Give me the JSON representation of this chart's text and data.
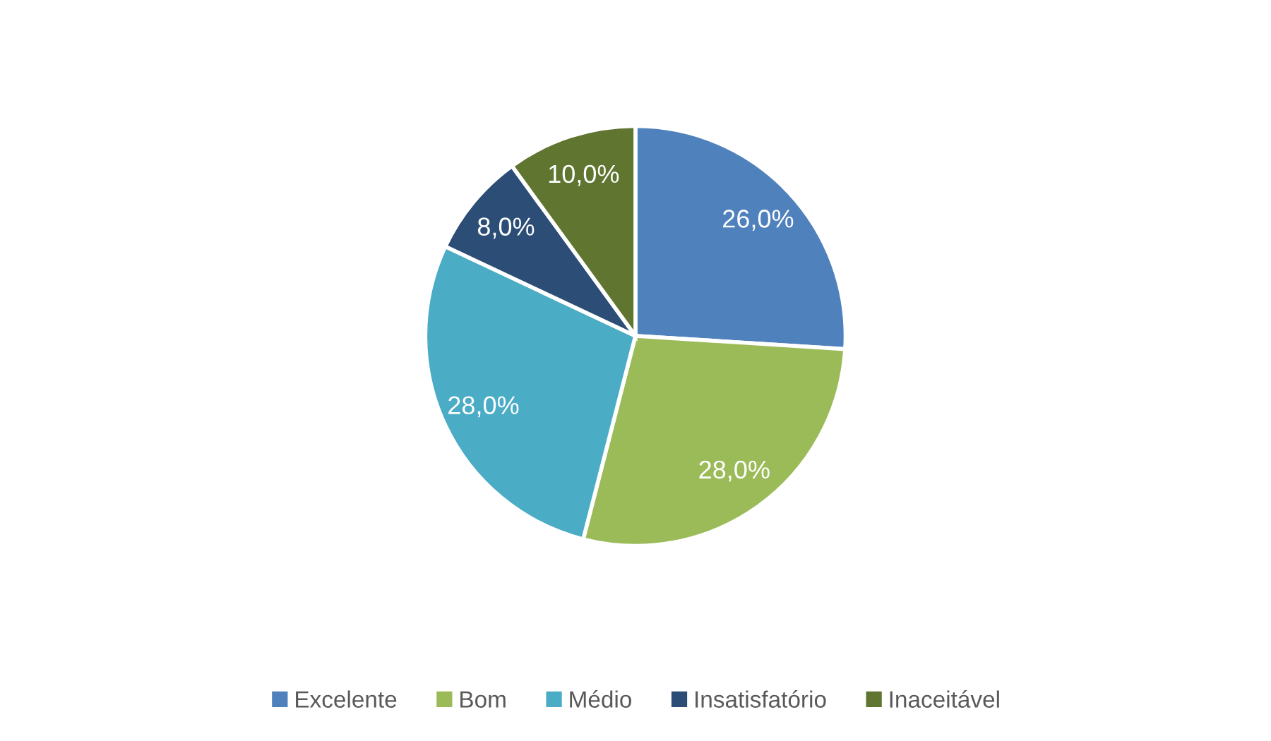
{
  "chart_data": {
    "type": "pie",
    "categories": [
      "Excelente",
      "Bom",
      "Médio",
      "Insatisfatório",
      "Inaceitável"
    ],
    "values": [
      26,
      28,
      28,
      8,
      10
    ],
    "colors": [
      "#4f81bd",
      "#9bbb59",
      "#4bacc6",
      "#2c4d75",
      "#5f7530"
    ],
    "value_labels": [
      "26,0%",
      "28,0%",
      "28,0%",
      "8,0%",
      "10,0%"
    ],
    "legend": "bottom"
  }
}
